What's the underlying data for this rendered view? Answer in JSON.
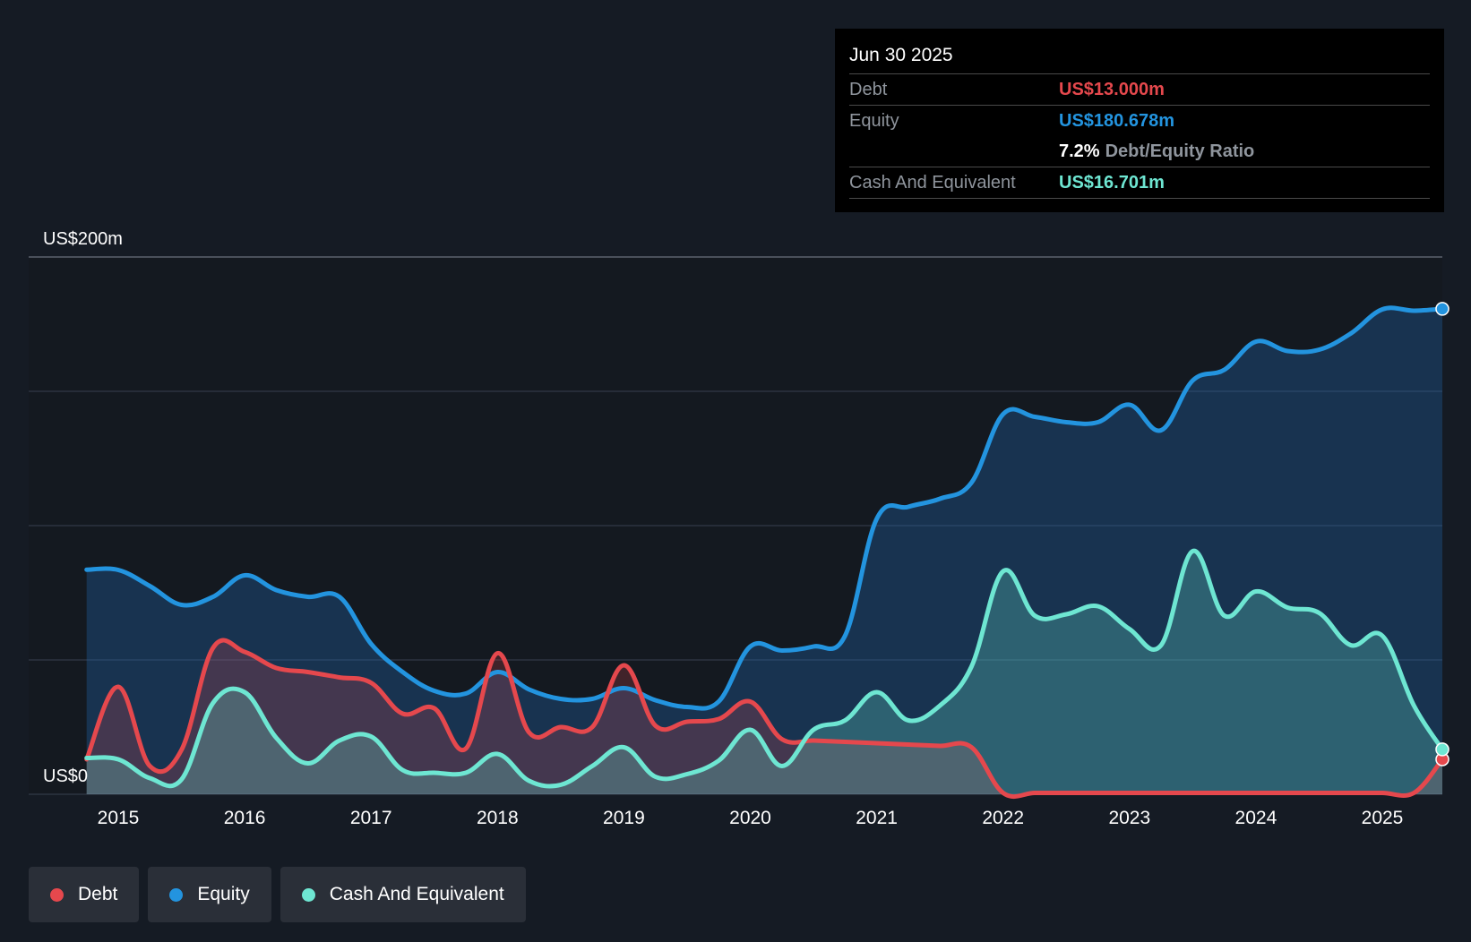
{
  "tooltip": {
    "date": "Jun 30 2025",
    "debt_label": "Debt",
    "debt_value": "US$13.000m",
    "equity_label": "Equity",
    "equity_value": "US$180.678m",
    "ratio_value": "7.2%",
    "ratio_label": "Debt/Equity Ratio",
    "cash_label": "Cash And Equivalent",
    "cash_value": "US$16.701m"
  },
  "legend": {
    "debt": "Debt",
    "equity": "Equity",
    "cash": "Cash And Equivalent"
  },
  "colors": {
    "debt": "#e5484d",
    "equity": "#2394df",
    "cash": "#6ee6d2",
    "background": "#151b24",
    "grid": "#3a4150"
  },
  "chart_data": {
    "type": "area",
    "ylim": [
      0,
      200
    ],
    "y_ticks_labeled": [
      {
        "value": 200,
        "label": "US$200m"
      },
      {
        "value": 0,
        "label": "US$0"
      }
    ],
    "grid_values": [
      0,
      50,
      100,
      150,
      200
    ],
    "x_ticks": [
      2015,
      2016,
      2017,
      2018,
      2019,
      2020,
      2021,
      2022,
      2023,
      2024,
      2025
    ],
    "xlim": [
      2014.5,
      2025.5
    ],
    "series": [
      {
        "name": "Equity",
        "x": [
          2014.75,
          2015.0,
          2015.25,
          2015.5,
          2015.75,
          2016.0,
          2016.25,
          2016.5,
          2016.75,
          2017.0,
          2017.25,
          2017.5,
          2017.75,
          2018.0,
          2018.25,
          2018.5,
          2018.75,
          2019.0,
          2019.25,
          2019.5,
          2019.75,
          2020.0,
          2020.25,
          2020.5,
          2020.75,
          2021.0,
          2021.25,
          2021.5,
          2021.75,
          2022.0,
          2022.25,
          2022.5,
          2022.75,
          2023.0,
          2023.25,
          2023.5,
          2023.75,
          2024.0,
          2024.25,
          2024.5,
          2024.75,
          2025.0,
          2025.25,
          2025.5
        ],
        "values": [
          83.6,
          83.5,
          77.5,
          70.5,
          73.5,
          81.5,
          76.0,
          73.5,
          73.5,
          56.0,
          45.5,
          38.5,
          37.5,
          45.5,
          39.0,
          35.5,
          35.5,
          39.5,
          35.0,
          32.5,
          34.5,
          55.0,
          53.5,
          55.0,
          59.0,
          102.5,
          107.0,
          110.0,
          116.0,
          141.5,
          140.5,
          138.5,
          138.5,
          145.0,
          135.5,
          154.0,
          158.0,
          168.5,
          165.0,
          165.5,
          171.5,
          180.5,
          180.0,
          180.7
        ]
      },
      {
        "name": "Debt",
        "x": [
          2014.75,
          2015.0,
          2015.25,
          2015.5,
          2015.75,
          2016.0,
          2016.25,
          2016.5,
          2016.75,
          2017.0,
          2017.25,
          2017.5,
          2017.75,
          2018.0,
          2018.25,
          2018.5,
          2018.75,
          2019.0,
          2019.25,
          2019.5,
          2019.75,
          2020.0,
          2020.25,
          2020.5,
          2020.75,
          2021.0,
          2021.25,
          2021.5,
          2021.75,
          2022.0,
          2022.25,
          2022.5,
          2022.75,
          2023.0,
          2023.25,
          2023.5,
          2023.75,
          2024.0,
          2024.25,
          2024.5,
          2024.75,
          2025.0,
          2025.25,
          2025.5
        ],
        "values": [
          13.0,
          40.0,
          10.5,
          16.5,
          54.5,
          53.0,
          47.0,
          45.5,
          43.5,
          41.5,
          30.0,
          32.0,
          17.0,
          52.5,
          23.0,
          25.0,
          25.0,
          48.0,
          25.5,
          27.0,
          28.0,
          34.5,
          20.5,
          20.0,
          19.5,
          19.0,
          18.5,
          18.0,
          17.5,
          0.5,
          0.5,
          0.5,
          0.5,
          0.5,
          0.5,
          0.5,
          0.5,
          0.5,
          0.5,
          0.5,
          0.5,
          0.5,
          0.5,
          13.0
        ]
      },
      {
        "name": "Cash And Equivalent",
        "x": [
          2014.75,
          2015.0,
          2015.25,
          2015.5,
          2015.75,
          2016.0,
          2016.25,
          2016.5,
          2016.75,
          2017.0,
          2017.25,
          2017.5,
          2017.75,
          2018.0,
          2018.25,
          2018.5,
          2018.75,
          2019.0,
          2019.25,
          2019.5,
          2019.75,
          2020.0,
          2020.25,
          2020.5,
          2020.75,
          2021.0,
          2021.25,
          2021.5,
          2021.75,
          2022.0,
          2022.25,
          2022.5,
          2022.75,
          2023.0,
          2023.25,
          2023.5,
          2023.75,
          2024.0,
          2024.25,
          2024.5,
          2024.75,
          2025.0,
          2025.25,
          2025.5
        ],
        "values": [
          13.5,
          13.0,
          6.0,
          5.5,
          34.0,
          38.0,
          21.0,
          11.5,
          20.0,
          21.5,
          9.0,
          8.0,
          8.0,
          15.0,
          5.0,
          3.5,
          10.5,
          17.5,
          6.5,
          7.5,
          12.5,
          24.0,
          10.5,
          24.0,
          27.5,
          38.0,
          27.5,
          33.0,
          47.5,
          83.0,
          66.5,
          67.0,
          70.0,
          61.5,
          55.5,
          90.5,
          66.5,
          75.5,
          69.5,
          67.5,
          55.5,
          59.0,
          33.0,
          16.7
        ]
      }
    ]
  }
}
